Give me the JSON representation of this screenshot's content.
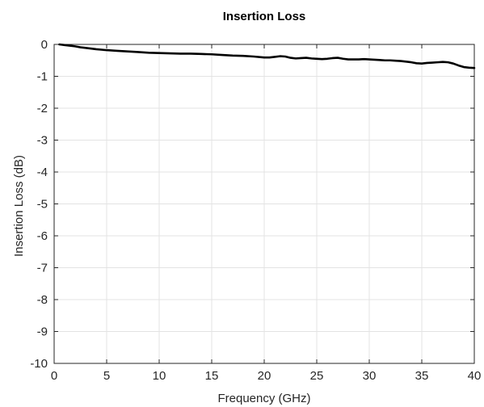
{
  "chart_data": {
    "type": "line",
    "title": "Insertion Loss",
    "xlabel": "Frequency (GHz)",
    "ylabel": "Insertion Loss (dB)",
    "xlim": [
      0,
      40
    ],
    "ylim": [
      -10,
      0
    ],
    "xticks": [
      0,
      5,
      10,
      15,
      20,
      25,
      30,
      35,
      40
    ],
    "yticks": [
      0,
      -1,
      -2,
      -3,
      -4,
      -5,
      -6,
      -7,
      -8,
      -9,
      -10
    ],
    "grid": true,
    "colors": {
      "line": "#000000",
      "grid": "#e3e3e3",
      "axis": "#262626"
    },
    "series": [
      {
        "x": [
          0.5,
          1,
          1.5,
          2,
          2.5,
          3,
          4,
          5,
          6,
          7,
          8,
          9,
          10,
          11,
          12,
          13,
          14,
          15,
          16,
          17,
          18,
          19,
          20,
          20.5,
          21,
          21.5,
          22,
          22.5,
          23,
          23.5,
          24,
          24.5,
          25,
          25.5,
          26,
          26.5,
          27,
          27.5,
          28,
          28.5,
          29,
          29.5,
          30,
          30.5,
          31,
          31.5,
          32,
          32.5,
          33,
          33.5,
          34,
          34.5,
          35,
          35.5,
          36,
          36.5,
          37,
          37.5,
          38,
          38.5,
          39,
          39.5,
          40
        ],
        "y": [
          0,
          -0.02,
          -0.04,
          -0.06,
          -0.09,
          -0.11,
          -0.15,
          -0.18,
          -0.2,
          -0.22,
          -0.24,
          -0.26,
          -0.27,
          -0.28,
          -0.29,
          -0.29,
          -0.3,
          -0.31,
          -0.33,
          -0.35,
          -0.36,
          -0.38,
          -0.41,
          -0.41,
          -0.39,
          -0.37,
          -0.38,
          -0.42,
          -0.44,
          -0.43,
          -0.42,
          -0.44,
          -0.45,
          -0.46,
          -0.45,
          -0.43,
          -0.42,
          -0.45,
          -0.47,
          -0.47,
          -0.47,
          -0.46,
          -0.47,
          -0.48,
          -0.49,
          -0.5,
          -0.5,
          -0.51,
          -0.52,
          -0.54,
          -0.56,
          -0.59,
          -0.6,
          -0.58,
          -0.57,
          -0.56,
          -0.55,
          -0.56,
          -0.6,
          -0.66,
          -0.71,
          -0.73,
          -0.74
        ]
      }
    ]
  }
}
